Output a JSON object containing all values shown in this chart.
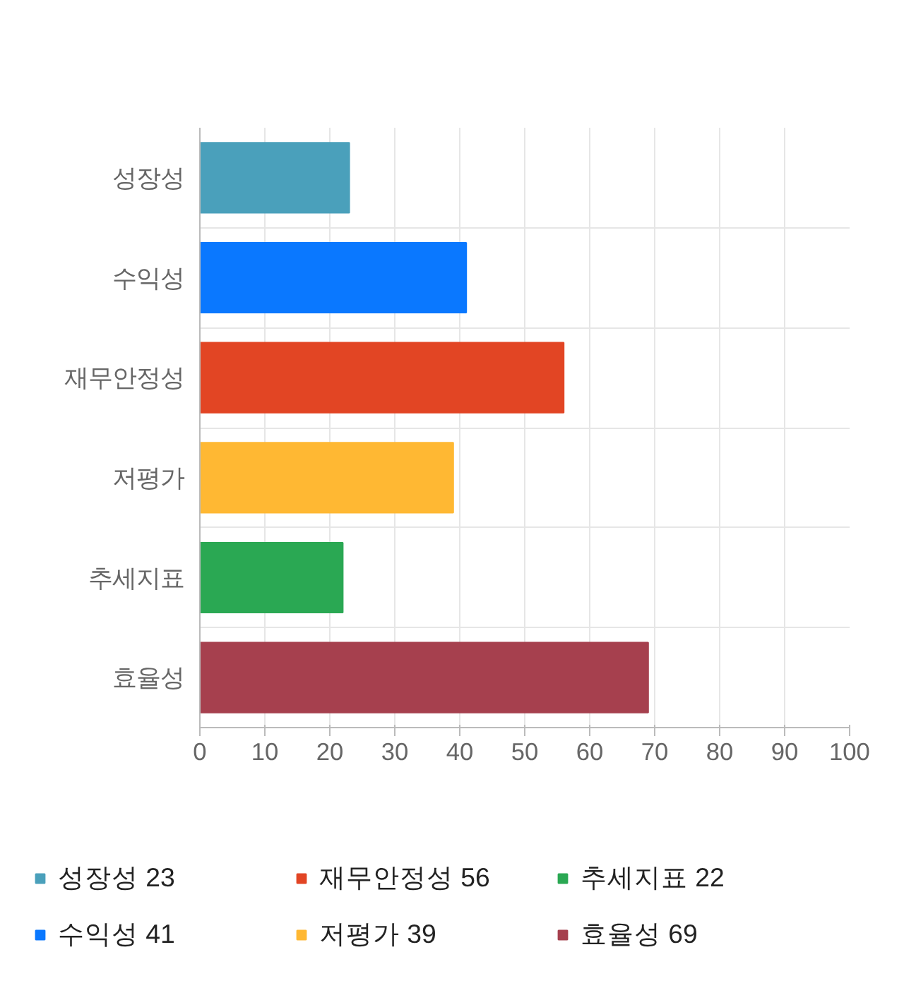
{
  "chart_data": {
    "type": "bar",
    "orientation": "horizontal",
    "categories": [
      "성장성",
      "수익성",
      "재무안정성",
      "저평가",
      "추세지표",
      "효율성"
    ],
    "series": [
      {
        "name": "성장성 23",
        "color": "#4aa0bb",
        "values": [
          23,
          null,
          null,
          null,
          null,
          null
        ]
      },
      {
        "name": "수익성 41",
        "color": "#0a78ff",
        "values": [
          null,
          41,
          null,
          null,
          null,
          null
        ]
      },
      {
        "name": "재무안정성 56",
        "color": "#e24524",
        "values": [
          null,
          null,
          56,
          null,
          null,
          null
        ]
      },
      {
        "name": "저평가 39",
        "color": "#ffb833",
        "values": [
          null,
          null,
          null,
          39,
          null,
          null
        ]
      },
      {
        "name": "추세지표 22",
        "color": "#2aa853",
        "values": [
          null,
          null,
          null,
          null,
          22,
          null
        ]
      },
      {
        "name": "효율성 69",
        "color": "#a6404e",
        "values": [
          null,
          null,
          null,
          null,
          null,
          69
        ]
      }
    ],
    "xlim": [
      0,
      100
    ],
    "xticks": [
      0,
      10,
      20,
      30,
      40,
      50,
      60,
      70,
      80,
      90,
      100
    ],
    "grid": true,
    "legend": "bottom"
  }
}
